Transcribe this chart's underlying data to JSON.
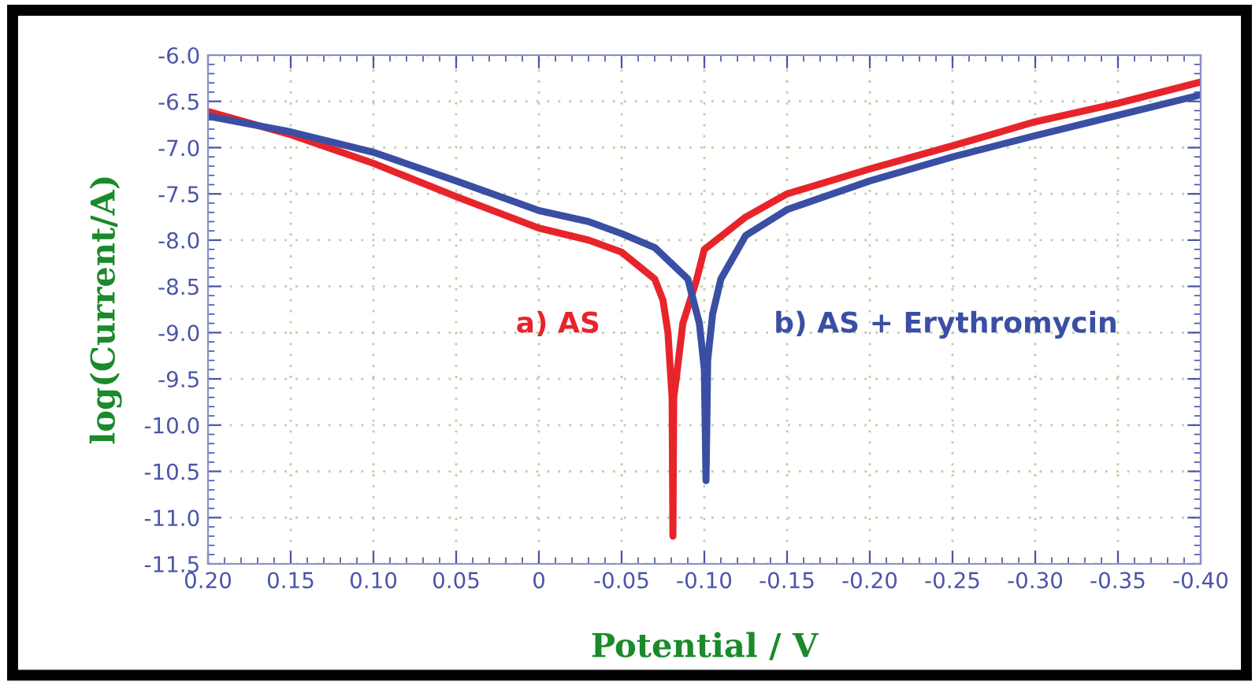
{
  "chart_data": {
    "type": "line",
    "xlabel": "Potential / V",
    "ylabel": "log(Current/A)",
    "xlim": [
      0.2,
      -0.4
    ],
    "xticks": [
      {
        "value": 0.2,
        "label": "0.20"
      },
      {
        "value": 0.15,
        "label": "0.15"
      },
      {
        "value": 0.1,
        "label": "0.10"
      },
      {
        "value": 0.05,
        "label": "0.05"
      },
      0,
      {
        "value": -0.05,
        "label": "-0.05"
      },
      {
        "value": -0.1,
        "label": "-0.10"
      },
      {
        "value": -0.15,
        "label": "-0.15"
      },
      {
        "value": -0.2,
        "label": "-0.20"
      },
      {
        "value": -0.25,
        "label": "-0.25"
      },
      {
        "value": -0.3,
        "label": "-0.30"
      },
      {
        "value": -0.35,
        "label": "-0.35"
      },
      {
        "value": -0.4,
        "label": "-0.40"
      }
    ],
    "ylim": [
      -11.5,
      -6.0
    ],
    "yticks": [
      {
        "value": -11.5,
        "label": "-11.5"
      },
      {
        "value": -11.0,
        "label": "-11.0"
      },
      {
        "value": -10.5,
        "label": "-10.5"
      },
      {
        "value": -10.0,
        "label": "-10.0"
      },
      {
        "value": -9.5,
        "label": "-9.5"
      },
      {
        "value": -9.0,
        "label": "-9.0"
      },
      {
        "value": -8.5,
        "label": "-8.5"
      },
      {
        "value": -8.0,
        "label": "-8.0"
      },
      {
        "value": -7.5,
        "label": "-7.5"
      },
      {
        "value": -7.0,
        "label": "-7.0"
      },
      {
        "value": -6.5,
        "label": "-6.5"
      },
      {
        "value": -6.0,
        "label": "-6.0"
      }
    ],
    "grid": true,
    "marker": "none",
    "line_style": "solid",
    "series": [
      {
        "name": "a) AS",
        "color": "#e8242b",
        "x": [
          0.2,
          0.15,
          0.1,
          0.05,
          0,
          -0.03,
          -0.05,
          -0.07,
          -0.075,
          -0.078,
          -0.0805,
          -0.081,
          -0.0815,
          -0.083,
          -0.087,
          -0.095,
          -0.1,
          -0.125,
          -0.15,
          -0.2,
          -0.25,
          -0.3,
          -0.35,
          -0.4
        ],
        "values": [
          -6.61,
          -6.86,
          -7.17,
          -7.53,
          -7.87,
          -8.0,
          -8.13,
          -8.42,
          -8.65,
          -9.0,
          -9.7,
          -11.2,
          -9.7,
          -9.5,
          -8.9,
          -8.45,
          -8.1,
          -7.75,
          -7.5,
          -7.23,
          -6.98,
          -6.72,
          -6.52,
          -6.29
        ]
      },
      {
        "name": "b) AS + Erythromycin",
        "color": "#3a4fa3",
        "x": [
          0.2,
          0.15,
          0.1,
          0.05,
          0,
          -0.03,
          -0.05,
          -0.07,
          -0.09,
          -0.097,
          -0.1,
          -0.1005,
          -0.101,
          -0.1015,
          -0.102,
          -0.105,
          -0.11,
          -0.125,
          -0.15,
          -0.2,
          -0.25,
          -0.3,
          -0.35,
          -0.4
        ],
        "values": [
          -6.66,
          -6.83,
          -7.05,
          -7.36,
          -7.68,
          -7.8,
          -7.93,
          -8.08,
          -8.42,
          -8.9,
          -9.4,
          -10.0,
          -10.6,
          -10.0,
          -9.3,
          -8.8,
          -8.42,
          -7.95,
          -7.67,
          -7.36,
          -7.1,
          -6.87,
          -6.65,
          -6.43
        ]
      }
    ]
  }
}
